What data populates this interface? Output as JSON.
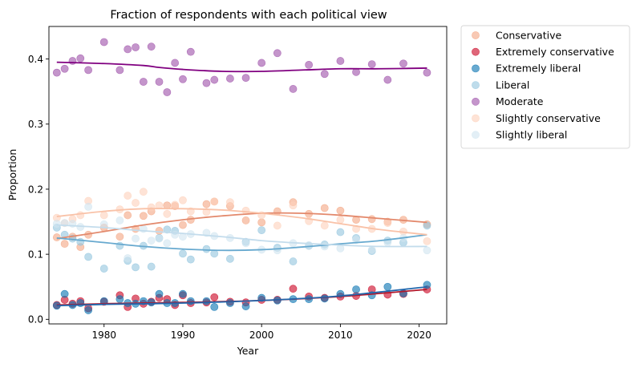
{
  "chart_data": {
    "type": "scatter",
    "title": "Fraction of respondents with each political view",
    "xlabel": "Year",
    "ylabel": "Proportion",
    "xlim": [
      1973,
      2023.5
    ],
    "ylim": [
      -0.007,
      0.45
    ],
    "xticks": [
      1980,
      1990,
      2000,
      2010,
      2020
    ],
    "yticks": [
      0.0,
      0.1,
      0.2,
      0.3,
      0.4
    ],
    "ytick_labels": [
      "0.0",
      "0.1",
      "0.2",
      "0.3",
      "0.4"
    ],
    "legend_position": "outside-right-top",
    "series": [
      {
        "name": "Conservative",
        "color": "#f4a582",
        "line_color": "#e3896c",
        "x": [
          1974,
          1975,
          1976,
          1977,
          1978,
          1980,
          1982,
          1983,
          1984,
          1985,
          1986,
          1987,
          1988,
          1989,
          1990,
          1991,
          1993,
          1994,
          1996,
          1998,
          2000,
          2002,
          2004,
          2006,
          2008,
          2010,
          2012,
          2014,
          2016,
          2018,
          2021
        ],
        "y": [
          0.126,
          0.116,
          0.127,
          0.111,
          0.13,
          0.141,
          0.127,
          0.16,
          0.139,
          0.159,
          0.166,
          0.136,
          0.175,
          0.174,
          0.145,
          0.153,
          0.177,
          0.181,
          0.174,
          0.152,
          0.149,
          0.166,
          0.18,
          0.162,
          0.171,
          0.167,
          0.153,
          0.154,
          0.15,
          0.153,
          0.146
        ],
        "trend": [
          [
            1974,
            0.124
          ],
          [
            1980,
            0.135
          ],
          [
            1985,
            0.145
          ],
          [
            1990,
            0.153
          ],
          [
            1995,
            0.159
          ],
          [
            2000,
            0.163
          ],
          [
            2005,
            0.163
          ],
          [
            2010,
            0.16
          ],
          [
            2015,
            0.155
          ],
          [
            2021,
            0.149
          ]
        ]
      },
      {
        "name": "Extremely conservative",
        "color": "#ca0020",
        "line_color": "#b2182b",
        "x": [
          1974,
          1975,
          1976,
          1977,
          1978,
          1980,
          1982,
          1983,
          1984,
          1985,
          1986,
          1987,
          1988,
          1989,
          1990,
          1991,
          1993,
          1994,
          1996,
          1998,
          2000,
          2002,
          2004,
          2006,
          2008,
          2010,
          2012,
          2014,
          2016,
          2018,
          2021
        ],
        "y": [
          0.022,
          0.03,
          0.024,
          0.028,
          0.017,
          0.027,
          0.037,
          0.019,
          0.032,
          0.024,
          0.027,
          0.033,
          0.031,
          0.022,
          0.037,
          0.025,
          0.026,
          0.034,
          0.027,
          0.026,
          0.03,
          0.03,
          0.047,
          0.035,
          0.033,
          0.035,
          0.036,
          0.046,
          0.038,
          0.039,
          0.046
        ],
        "trend": [
          [
            1974,
            0.022
          ],
          [
            1980,
            0.024
          ],
          [
            1990,
            0.026
          ],
          [
            2000,
            0.029
          ],
          [
            2010,
            0.035
          ],
          [
            2021,
            0.046
          ]
        ]
      },
      {
        "name": "Extremely liberal",
        "color": "#0571b0",
        "line_color": "#2166ac",
        "x": [
          1974,
          1975,
          1976,
          1977,
          1978,
          1980,
          1982,
          1983,
          1984,
          1985,
          1986,
          1987,
          1988,
          1989,
          1990,
          1991,
          1993,
          1994,
          1996,
          1998,
          2000,
          2002,
          2004,
          2006,
          2008,
          2010,
          2012,
          2014,
          2016,
          2018,
          2021
        ],
        "y": [
          0.021,
          0.039,
          0.022,
          0.025,
          0.014,
          0.028,
          0.031,
          0.025,
          0.024,
          0.028,
          0.026,
          0.039,
          0.025,
          0.025,
          0.039,
          0.028,
          0.028,
          0.019,
          0.025,
          0.02,
          0.033,
          0.029,
          0.031,
          0.031,
          0.032,
          0.039,
          0.046,
          0.037,
          0.05,
          0.04,
          0.053
        ],
        "trend": [
          [
            1974,
            0.021
          ],
          [
            1980,
            0.023
          ],
          [
            1990,
            0.025
          ],
          [
            2000,
            0.029
          ],
          [
            2010,
            0.036
          ],
          [
            2021,
            0.05
          ]
        ]
      },
      {
        "name": "Liberal",
        "color": "#92c5de",
        "line_color": "#67a9cf",
        "x": [
          1974,
          1975,
          1976,
          1977,
          1978,
          1980,
          1982,
          1983,
          1984,
          1985,
          1986,
          1987,
          1988,
          1989,
          1990,
          1991,
          1993,
          1994,
          1996,
          1998,
          2000,
          2002,
          2004,
          2006,
          2008,
          2010,
          2012,
          2014,
          2016,
          2018,
          2021
        ],
        "y": [
          0.141,
          0.13,
          0.124,
          0.119,
          0.096,
          0.078,
          0.113,
          0.09,
          0.08,
          0.113,
          0.081,
          0.125,
          0.138,
          0.136,
          0.101,
          0.092,
          0.108,
          0.101,
          0.093,
          0.119,
          0.137,
          0.11,
          0.089,
          0.113,
          0.115,
          0.134,
          0.125,
          0.105,
          0.121,
          0.118,
          0.144
        ],
        "trend": [
          [
            1974,
            0.125
          ],
          [
            1980,
            0.118
          ],
          [
            1985,
            0.112
          ],
          [
            1990,
            0.108
          ],
          [
            1995,
            0.106
          ],
          [
            2000,
            0.107
          ],
          [
            2005,
            0.111
          ],
          [
            2010,
            0.116
          ],
          [
            2015,
            0.121
          ],
          [
            2021,
            0.13
          ]
        ]
      },
      {
        "name": "Moderate",
        "color": "#9d4ea8",
        "line_color": "#800080",
        "x": [
          1974,
          1975,
          1976,
          1977,
          1978,
          1980,
          1982,
          1983,
          1984,
          1985,
          1986,
          1987,
          1988,
          1989,
          1990,
          1991,
          1993,
          1994,
          1996,
          1998,
          2000,
          2002,
          2004,
          2006,
          2008,
          2010,
          2012,
          2014,
          2016,
          2018,
          2021
        ],
        "y": [
          0.379,
          0.385,
          0.397,
          0.401,
          0.383,
          0.426,
          0.383,
          0.415,
          0.418,
          0.365,
          0.419,
          0.365,
          0.349,
          0.394,
          0.369,
          0.411,
          0.363,
          0.368,
          0.37,
          0.371,
          0.394,
          0.409,
          0.354,
          0.391,
          0.377,
          0.397,
          0.38,
          0.392,
          0.368,
          0.393,
          0.379
        ],
        "trend": [
          [
            1974,
            0.395
          ],
          [
            1980,
            0.393
          ],
          [
            1985,
            0.39
          ],
          [
            1987,
            0.387
          ],
          [
            1990,
            0.384
          ],
          [
            1995,
            0.381
          ],
          [
            2000,
            0.381
          ],
          [
            2005,
            0.383
          ],
          [
            2010,
            0.385
          ],
          [
            2015,
            0.385
          ],
          [
            2021,
            0.386
          ]
        ]
      },
      {
        "name": "Slightly conservative",
        "color": "#fdd1bb",
        "line_color": "#f9c2a8",
        "x": [
          1974,
          1975,
          1976,
          1977,
          1978,
          1980,
          1982,
          1983,
          1984,
          1985,
          1986,
          1987,
          1988,
          1989,
          1990,
          1991,
          1993,
          1994,
          1996,
          1998,
          2000,
          2002,
          2004,
          2006,
          2008,
          2010,
          2012,
          2014,
          2016,
          2018,
          2021
        ],
        "y": [
          0.156,
          0.148,
          0.154,
          0.16,
          0.182,
          0.16,
          0.169,
          0.19,
          0.179,
          0.196,
          0.172,
          0.175,
          0.162,
          0.176,
          0.183,
          0.166,
          0.165,
          0.181,
          0.18,
          0.167,
          0.16,
          0.144,
          0.175,
          0.151,
          0.144,
          0.153,
          0.139,
          0.139,
          0.148,
          0.135,
          0.12
        ],
        "trend": [
          [
            1974,
            0.158
          ],
          [
            1980,
            0.166
          ],
          [
            1985,
            0.17
          ],
          [
            1990,
            0.17
          ],
          [
            1995,
            0.168
          ],
          [
            2000,
            0.163
          ],
          [
            2005,
            0.156
          ],
          [
            2010,
            0.147
          ],
          [
            2015,
            0.138
          ],
          [
            2021,
            0.13
          ]
        ]
      },
      {
        "name": "Slightly liberal",
        "color": "#d1e5f0",
        "line_color": "#c3dcec",
        "x": [
          1974,
          1975,
          1976,
          1977,
          1978,
          1980,
          1982,
          1983,
          1984,
          1985,
          1986,
          1987,
          1988,
          1989,
          1990,
          1991,
          1993,
          1994,
          1996,
          1998,
          2000,
          2002,
          2004,
          2006,
          2008,
          2010,
          2012,
          2014,
          2016,
          2018,
          2021
        ],
        "y": [
          0.147,
          0.148,
          0.147,
          0.142,
          0.173,
          0.146,
          0.152,
          0.094,
          0.124,
          0.139,
          0.121,
          0.124,
          0.117,
          0.13,
          0.127,
          0.131,
          0.133,
          0.128,
          0.125,
          0.117,
          0.107,
          0.106,
          0.117,
          0.114,
          0.112,
          0.109,
          0.122,
          0.107,
          0.118,
          0.125,
          0.106
        ],
        "trend": [
          [
            1974,
            0.145
          ],
          [
            1980,
            0.141
          ],
          [
            1985,
            0.136
          ],
          [
            1990,
            0.132
          ],
          [
            1995,
            0.127
          ],
          [
            2000,
            0.121
          ],
          [
            2005,
            0.117
          ],
          [
            2010,
            0.114
          ],
          [
            2015,
            0.112
          ],
          [
            2021,
            0.112
          ]
        ]
      }
    ]
  }
}
